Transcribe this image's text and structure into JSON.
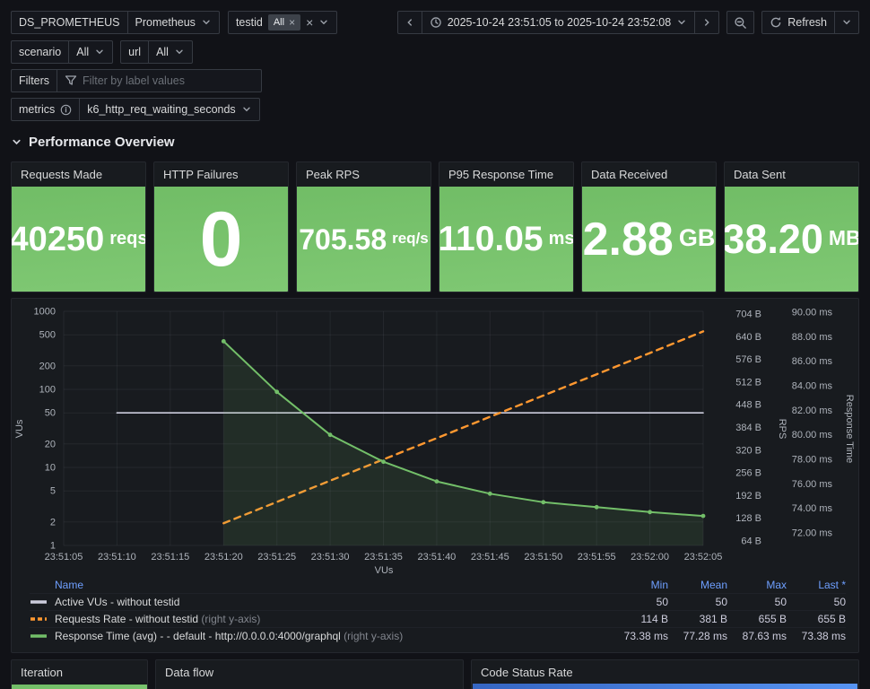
{
  "toolbar": {
    "ds_label": "DS_PROMETHEUS",
    "ds_value": "Prometheus",
    "testid_label": "testid",
    "testid_chip": "All",
    "timerange": "2025-10-24 23:51:05 to 2025-10-24 23:52:08",
    "refresh_label": "Refresh",
    "scenario_label": "scenario",
    "scenario_value": "All",
    "url_label": "url",
    "url_value": "All",
    "filters_label": "Filters",
    "filters_placeholder": "Filter by label values",
    "metrics_label": "metrics",
    "metrics_value": "k6_http_req_waiting_seconds"
  },
  "section_title": "Performance Overview",
  "stats": [
    {
      "title": "Requests Made",
      "value": "40250",
      "unit": "reqs"
    },
    {
      "title": "HTTP Failures",
      "value": "0",
      "unit": ""
    },
    {
      "title": "Peak RPS",
      "value": "705.58",
      "unit": "req/s"
    },
    {
      "title": "P95 Response Time",
      "value": "110.05",
      "unit": "ms"
    },
    {
      "title": "Data Received",
      "value": "2.88",
      "unit": "GB"
    },
    {
      "title": "Data Sent",
      "value": "38.20",
      "unit": "MB"
    }
  ],
  "chart_data": {
    "type": "line",
    "x_ticks": [
      "23:51:05",
      "23:51:10",
      "23:51:15",
      "23:51:20",
      "23:51:25",
      "23:51:30",
      "23:51:35",
      "23:51:40",
      "23:51:45",
      "23:51:50",
      "23:51:55",
      "23:52:00",
      "23:52:05"
    ],
    "x_range_seconds": [
      0,
      60
    ],
    "xlabel": "VUs",
    "left_axis": {
      "label": "VUs",
      "scale": "log",
      "ticks": [
        1,
        2,
        5,
        10,
        20,
        50,
        100,
        200,
        500,
        1000
      ]
    },
    "right_axis_bytes": {
      "label": "RPS",
      "min": 64,
      "max": 704,
      "ticks": [
        "704 B",
        "640 B",
        "576 B",
        "512 B",
        "448 B",
        "384 B",
        "320 B",
        "256 B",
        "192 B",
        "128 B",
        "64 B"
      ]
    },
    "right_axis_ms": {
      "label": "Response Time",
      "min": 72,
      "max": 90,
      "ticks": [
        "90.00 ms",
        "88.00 ms",
        "86.00 ms",
        "84.00 ms",
        "82.00 ms",
        "80.00 ms",
        "78.00 ms",
        "76.00 ms",
        "74.00 ms",
        "72.00 ms"
      ]
    },
    "series": [
      {
        "name": "Active VUs - without testid",
        "color": "#ccccdc",
        "axis": "left",
        "style": "solid",
        "points": [
          [
            5,
            50
          ],
          [
            60,
            50
          ]
        ]
      },
      {
        "name": "Requests Rate - without testid",
        "color": "#ff9830",
        "axis": "bytes",
        "style": "dashed",
        "points": [
          [
            15,
            114
          ],
          [
            20,
            174
          ],
          [
            25,
            234
          ],
          [
            30,
            294
          ],
          [
            35,
            354
          ],
          [
            40,
            414
          ],
          [
            45,
            474
          ],
          [
            50,
            534
          ],
          [
            55,
            594
          ],
          [
            60,
            655
          ]
        ]
      },
      {
        "name": "Response Time (avg) - - default - http://0.0.0.0:4000/graphql",
        "color": "#73bf69",
        "axis": "ms",
        "style": "solid",
        "fill": true,
        "markers": true,
        "points": [
          [
            15,
            87.63
          ],
          [
            20,
            83.5
          ],
          [
            25,
            80.0
          ],
          [
            30,
            77.8
          ],
          [
            35,
            76.2
          ],
          [
            40,
            75.2
          ],
          [
            45,
            74.5
          ],
          [
            50,
            74.1
          ],
          [
            55,
            73.7
          ],
          [
            60,
            73.38
          ]
        ]
      }
    ]
  },
  "legend": {
    "headers": {
      "name": "Name",
      "min": "Min",
      "mean": "Mean",
      "max": "Max",
      "last": "Last *"
    },
    "rows": [
      {
        "name": "Active VUs - without testid",
        "note": "",
        "color": "#ccccdc",
        "dashed": false,
        "min": "50",
        "mean": "50",
        "max": "50",
        "last": "50"
      },
      {
        "name": "Requests Rate - without testid",
        "note": "(right y-axis)",
        "color": "#ff9830",
        "dashed": true,
        "min": "114 B",
        "mean": "381 B",
        "max": "655 B",
        "last": "655 B"
      },
      {
        "name": "Response Time (avg) - - default - http://0.0.0.0:4000/graphql",
        "note": "(right y-axis)",
        "color": "#73bf69",
        "dashed": false,
        "min": "73.38 ms",
        "mean": "77.28 ms",
        "max": "87.63 ms",
        "last": "73.38 ms"
      }
    ]
  },
  "bottom": {
    "panels": [
      {
        "title": "Iteration"
      },
      {
        "title": "Data flow"
      },
      {
        "title": "Code Status Rate"
      }
    ]
  }
}
